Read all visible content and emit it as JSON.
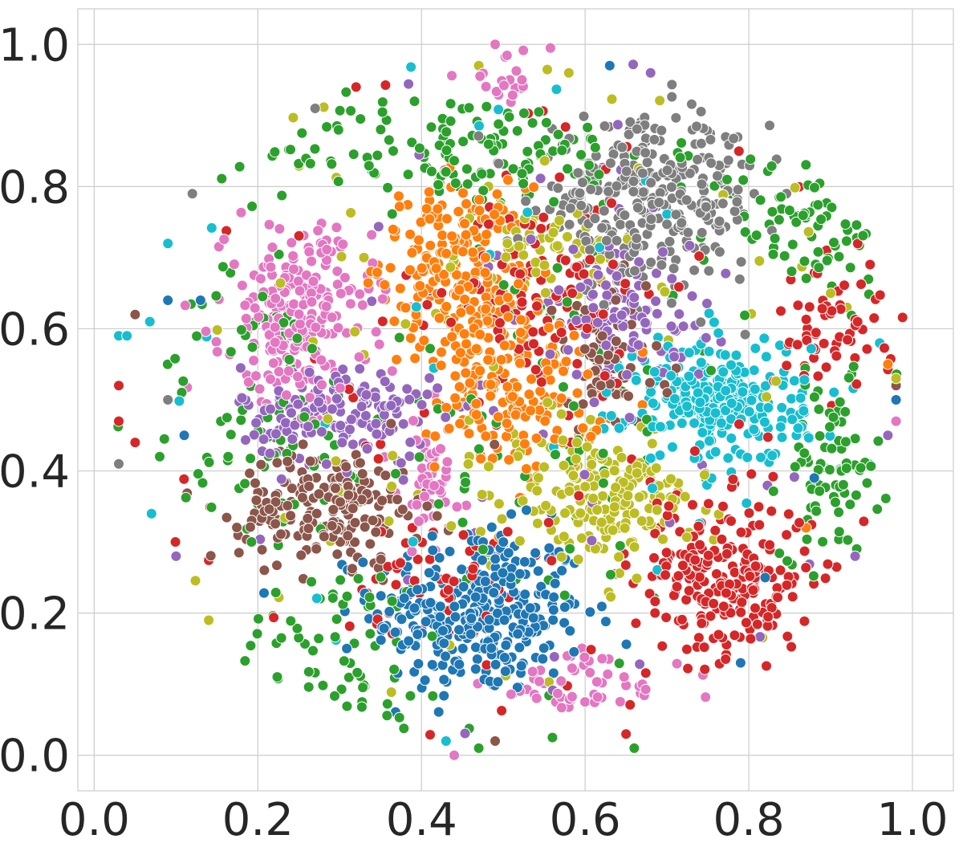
{
  "chart_data": {
    "type": "scatter",
    "title": "",
    "xlabel": "",
    "ylabel": "",
    "xlim": [
      -0.02,
      1.05
    ],
    "ylim": [
      -0.05,
      1.05
    ],
    "grid": true,
    "legend": "none",
    "x_ticks": [
      {
        "value": 0.0,
        "label": "0.0"
      },
      {
        "value": 0.2,
        "label": "0.2"
      },
      {
        "value": 0.4,
        "label": "0.4"
      },
      {
        "value": 0.6,
        "label": "0.6"
      },
      {
        "value": 0.8,
        "label": "0.8"
      },
      {
        "value": 1.0,
        "label": "1.0"
      }
    ],
    "y_ticks": [
      {
        "value": 0.0,
        "label": "0.0"
      },
      {
        "value": 0.2,
        "label": "0.2"
      },
      {
        "value": 0.4,
        "label": "0.4"
      },
      {
        "value": 0.6,
        "label": "0.6"
      },
      {
        "value": 0.8,
        "label": "0.8"
      },
      {
        "value": 1.0,
        "label": "1.0"
      }
    ],
    "series": [
      {
        "color": "#1f77b4",
        "clusters": [
          {
            "cx": 0.47,
            "cy": 0.2,
            "sx": 0.065,
            "sy": 0.06,
            "n": 330
          }
        ],
        "points": [
          [
            0.09,
            0.64
          ],
          [
            0.13,
            0.64
          ],
          [
            0.24,
            0.59
          ],
          [
            0.5,
            0.3
          ],
          [
            0.82,
            0.25
          ],
          [
            0.98,
            0.5
          ],
          [
            0.88,
            0.39
          ],
          [
            0.11,
            0.45
          ],
          [
            0.79,
            0.13
          ],
          [
            0.63,
            0.97
          ]
        ]
      },
      {
        "color": "#ff7f0e",
        "clusters": [
          {
            "cx": 0.44,
            "cy": 0.7,
            "sx": 0.045,
            "sy": 0.05,
            "n": 160
          },
          {
            "cx": 0.52,
            "cy": 0.5,
            "sx": 0.05,
            "sy": 0.05,
            "n": 140
          },
          {
            "cx": 0.47,
            "cy": 0.6,
            "sx": 0.04,
            "sy": 0.05,
            "n": 90
          }
        ],
        "points": [
          [
            0.97,
            0.55
          ],
          [
            0.87,
            0.32
          ]
        ]
      },
      {
        "color": "#2ca02c",
        "clusters": [
          {
            "cx": 0.9,
            "cy": 0.4,
            "sx": 0.03,
            "sy": 0.06,
            "n": 80
          },
          {
            "cx": 0.87,
            "cy": 0.75,
            "sx": 0.06,
            "sy": 0.05,
            "n": 70
          },
          {
            "cx": 0.45,
            "cy": 0.85,
            "sx": 0.12,
            "sy": 0.04,
            "n": 140
          },
          {
            "cx": 0.2,
            "cy": 0.48,
            "sx": 0.07,
            "sy": 0.1,
            "n": 70
          },
          {
            "cx": 0.3,
            "cy": 0.15,
            "sx": 0.07,
            "sy": 0.06,
            "n": 60
          },
          {
            "cx": 0.5,
            "cy": 0.45,
            "sx": 0.15,
            "sy": 0.2,
            "n": 100
          }
        ],
        "points": [
          [
            0.66,
            0.01
          ],
          [
            0.47,
            0.01
          ],
          [
            0.08,
            0.42
          ]
        ]
      },
      {
        "color": "#d62728",
        "clusters": [
          {
            "cx": 0.77,
            "cy": 0.25,
            "sx": 0.055,
            "sy": 0.055,
            "n": 230
          },
          {
            "cx": 0.91,
            "cy": 0.6,
            "sx": 0.04,
            "sy": 0.05,
            "n": 60
          },
          {
            "cx": 0.55,
            "cy": 0.65,
            "sx": 0.05,
            "sy": 0.07,
            "n": 90
          },
          {
            "cx": 0.4,
            "cy": 0.25,
            "sx": 0.05,
            "sy": 0.04,
            "n": 40
          },
          {
            "cx": 0.5,
            "cy": 0.5,
            "sx": 0.25,
            "sy": 0.3,
            "n": 80
          }
        ],
        "points": [
          [
            0.03,
            0.52
          ],
          [
            0.03,
            0.47
          ],
          [
            0.32,
            0.94
          ],
          [
            0.05,
            0.44
          ],
          [
            0.65,
            0.03
          ]
        ]
      },
      {
        "color": "#9467bd",
        "clusters": [
          {
            "cx": 0.3,
            "cy": 0.48,
            "sx": 0.06,
            "sy": 0.035,
            "n": 160
          },
          {
            "cx": 0.65,
            "cy": 0.62,
            "sx": 0.05,
            "sy": 0.05,
            "n": 110
          },
          {
            "cx": 0.5,
            "cy": 0.5,
            "sx": 0.25,
            "sy": 0.3,
            "n": 50
          }
        ],
        "points": [
          [
            0.97,
            0.45
          ],
          [
            0.93,
            0.28
          ],
          [
            0.68,
            0.96
          ],
          [
            0.1,
            0.28
          ]
        ]
      },
      {
        "color": "#8c564b",
        "clusters": [
          {
            "cx": 0.29,
            "cy": 0.35,
            "sx": 0.055,
            "sy": 0.04,
            "n": 200
          },
          {
            "cx": 0.62,
            "cy": 0.55,
            "sx": 0.04,
            "sy": 0.05,
            "n": 70
          }
        ],
        "points": [
          [
            0.49,
            0.02
          ],
          [
            0.05,
            0.62
          ],
          [
            0.98,
            0.52
          ]
        ]
      },
      {
        "color": "#e377c2",
        "clusters": [
          {
            "cx": 0.25,
            "cy": 0.62,
            "sx": 0.045,
            "sy": 0.06,
            "n": 230
          },
          {
            "cx": 0.41,
            "cy": 0.38,
            "sx": 0.02,
            "sy": 0.05,
            "n": 50
          },
          {
            "cx": 0.6,
            "cy": 0.1,
            "sx": 0.06,
            "sy": 0.025,
            "n": 50
          },
          {
            "cx": 0.5,
            "cy": 0.95,
            "sx": 0.03,
            "sy": 0.02,
            "n": 20
          }
        ],
        "points": [
          [
            0.49,
            1.0
          ],
          [
            0.98,
            0.47
          ],
          [
            0.44,
            0.0
          ],
          [
            0.67,
            0.1
          ]
        ]
      },
      {
        "color": "#7f7f7f",
        "clusters": [
          {
            "cx": 0.68,
            "cy": 0.78,
            "sx": 0.07,
            "sy": 0.055,
            "n": 330
          }
        ],
        "points": [
          [
            0.03,
            0.41
          ],
          [
            0.12,
            0.79
          ],
          [
            0.27,
            0.91
          ],
          [
            0.09,
            0.5
          ]
        ]
      },
      {
        "color": "#bcbd22",
        "clusters": [
          {
            "cx": 0.62,
            "cy": 0.36,
            "sx": 0.055,
            "sy": 0.04,
            "n": 200
          },
          {
            "cx": 0.55,
            "cy": 0.72,
            "sx": 0.04,
            "sy": 0.03,
            "n": 50
          },
          {
            "cx": 0.5,
            "cy": 0.5,
            "sx": 0.25,
            "sy": 0.3,
            "n": 70
          }
        ],
        "points": [
          [
            0.92,
            0.63
          ],
          [
            0.9,
            0.65
          ],
          [
            0.58,
            0.96
          ],
          [
            0.47,
            0.97
          ],
          [
            0.14,
            0.19
          ],
          [
            0.98,
            0.53
          ]
        ]
      },
      {
        "color": "#17becf",
        "clusters": [
          {
            "cx": 0.76,
            "cy": 0.5,
            "sx": 0.055,
            "sy": 0.045,
            "n": 280
          },
          {
            "cx": 0.5,
            "cy": 0.5,
            "sx": 0.25,
            "sy": 0.3,
            "n": 30
          }
        ],
        "points": [
          [
            0.03,
            0.59
          ],
          [
            0.04,
            0.59
          ],
          [
            0.09,
            0.72
          ],
          [
            0.07,
            0.34
          ],
          [
            0.96,
            0.58
          ],
          [
            0.43,
            0.02
          ]
        ]
      }
    ]
  }
}
